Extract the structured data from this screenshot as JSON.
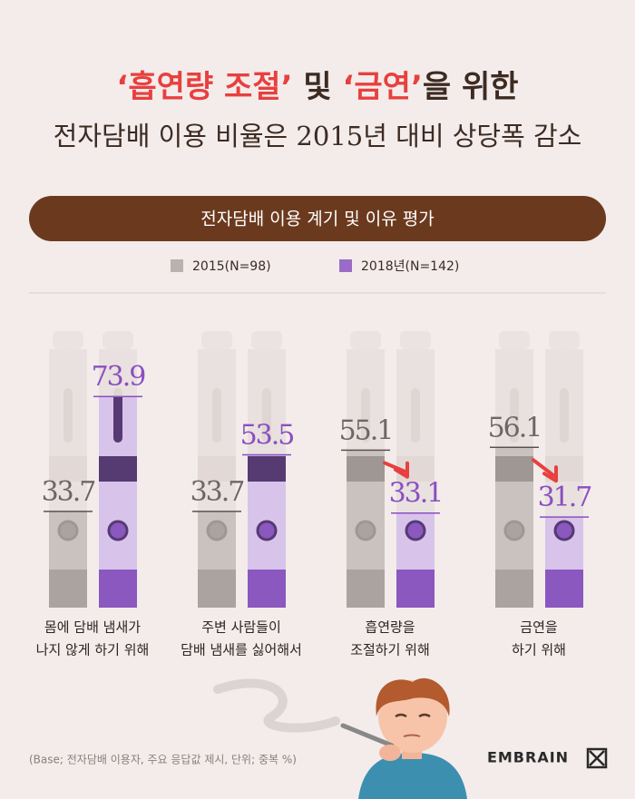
{
  "chart_data": {
    "type": "bar",
    "title": [
      "‘흡연량 조절’",
      " 및 ",
      "‘금연’",
      "을 위한"
    ],
    "subtitle": "전자담배 이용 비율은 2015년 대비 상당폭 감소",
    "banner": "전자담배 이용 계기 및 이유 평가",
    "categories": [
      [
        "몸에 담배 냄새가",
        "나지 않게 하기 위해"
      ],
      [
        "주변 사람들이",
        "담배 냄새를 싫어해서"
      ],
      [
        "흡연량을",
        "조절하기 위해"
      ],
      [
        "금연을",
        "하기 위해"
      ]
    ],
    "series": [
      {
        "name": "2015(N=98)",
        "color": "#b9b2af",
        "values": [
          33.7,
          33.7,
          55.1,
          56.1
        ]
      },
      {
        "name": "2018년(N=142)",
        "color": "#9b6cc6",
        "values": [
          73.9,
          53.5,
          33.1,
          31.7
        ]
      }
    ],
    "footnote": "(Base; 전자담배 이용자, 주요 응답값 제시, 단위; 중복 %)",
    "logo": "EMBRAIN"
  }
}
